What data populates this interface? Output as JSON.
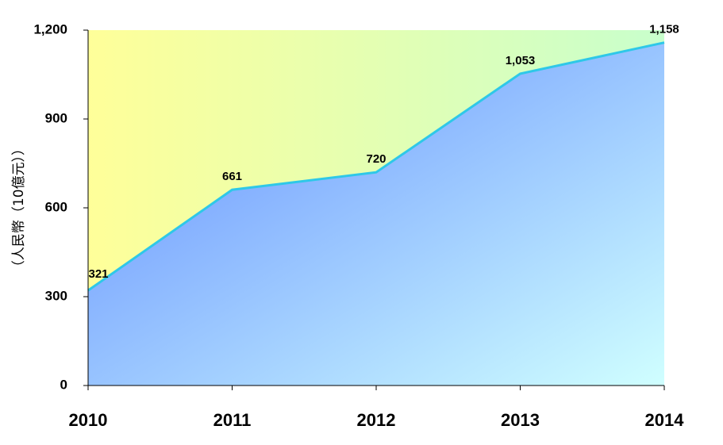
{
  "chart_data": {
    "type": "area",
    "y_label": "（人民幣（10億元））",
    "categories": [
      "2010",
      "2011",
      "2012",
      "2013",
      "2014"
    ],
    "values": [
      321,
      661,
      720,
      1053,
      1158
    ],
    "value_labels": [
      "321",
      "661",
      "720",
      "1,053",
      "1,158"
    ],
    "line_color": "#2ec8e8",
    "ylim": [
      0,
      1200
    ],
    "yticks": [
      0,
      300,
      600,
      900,
      {
        "value": 1200,
        "label": "1,200"
      }
    ]
  }
}
